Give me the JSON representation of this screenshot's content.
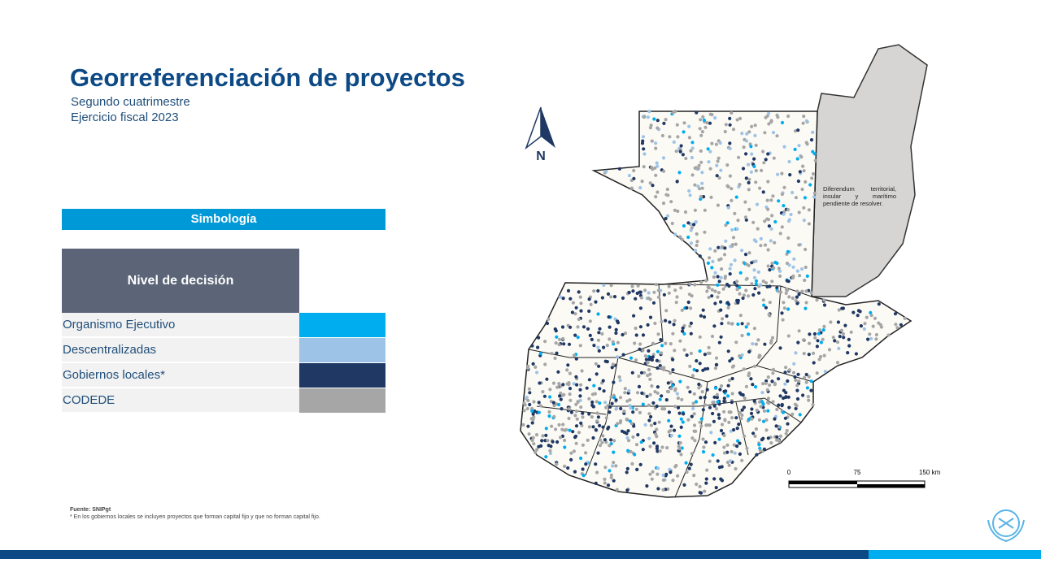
{
  "header": {
    "title": "Georreferenciación de proyectos",
    "subtitle": [
      "Segundo cuatrimestre",
      "Ejercicio fiscal 2023"
    ]
  },
  "legend": {
    "title": "Simbología",
    "column_header": "Nivel de decisión",
    "rows": [
      {
        "label": "Organismo Ejecutivo",
        "color": "#00aeef"
      },
      {
        "label": "Descentralizadas",
        "color": "#9dc3e6"
      },
      {
        "label": "Gobiernos locales*",
        "color": "#1f3864"
      },
      {
        "label": "CODEDE",
        "color": "#a6a6a6"
      }
    ]
  },
  "map": {
    "north_label": "N",
    "dispute_note": "Diferendum territorial, insular y marítimo pendiente de resolver.",
    "scale_labels": [
      "0",
      "75",
      "150 km"
    ]
  },
  "footer": {
    "source": "Fuente: SNIPgt",
    "note": "* En los gobiernos locales se incluyen proyectos que forman capital fijo y que no forman capital fijo."
  }
}
